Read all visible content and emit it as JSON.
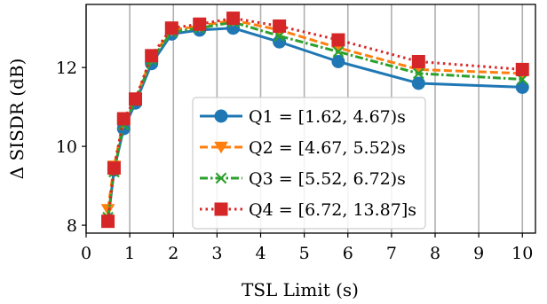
{
  "chart_data": {
    "type": "line",
    "xlabel": "TSL Limit (s)",
    "ylabel": "Δ SISDR (dB)",
    "xlim": [
      0,
      10.3
    ],
    "ylim": [
      7.8,
      13.6
    ],
    "x_ticks": [
      0,
      1,
      2,
      3,
      4,
      5,
      6,
      7,
      8,
      9,
      10
    ],
    "y_ticks": [
      8,
      10,
      12
    ],
    "grid": "vertical",
    "legend_position": "center-right",
    "series": [
      {
        "name": "Q1 = [1.62, 4.67)s",
        "color": "#1f77b4",
        "dash": "solid",
        "marker": "circle",
        "x": [
          0.5,
          0.64,
          0.86,
          1.13,
          1.5,
          1.96,
          2.6,
          3.37,
          4.43,
          5.78,
          7.62,
          10.0
        ],
        "y": [
          8.1,
          9.4,
          10.45,
          11.1,
          12.1,
          12.85,
          12.95,
          13.0,
          12.65,
          12.15,
          11.6,
          11.5
        ]
      },
      {
        "name": "Q2 = [4.67, 5.52)s",
        "color": "#ff7f0e",
        "dash": "dashed",
        "marker": "triangle-down",
        "x": [
          0.5,
          0.64,
          0.86,
          1.13,
          1.5,
          1.96,
          2.6,
          3.37,
          4.43,
          5.78,
          7.62,
          10.0
        ],
        "y": [
          8.4,
          9.5,
          10.65,
          11.2,
          12.25,
          12.95,
          13.05,
          13.2,
          12.95,
          12.5,
          11.95,
          11.85
        ]
      },
      {
        "name": "Q3 = [5.52, 6.72)s",
        "color": "#2ca02c",
        "dash": "dashdot",
        "marker": "x",
        "x": [
          0.5,
          0.64,
          0.86,
          1.13,
          1.5,
          1.96,
          2.6,
          3.37,
          4.43,
          5.78,
          7.62,
          10.0
        ],
        "y": [
          8.2,
          9.35,
          10.55,
          11.15,
          12.2,
          12.9,
          13.0,
          13.15,
          12.8,
          12.4,
          11.85,
          11.7
        ]
      },
      {
        "name": "Q4 = [6.72, 13.87]s",
        "color": "#d62728",
        "dash": "dotted",
        "marker": "square",
        "x": [
          0.5,
          0.64,
          0.86,
          1.13,
          1.5,
          1.96,
          2.6,
          3.37,
          4.43,
          5.78,
          7.62,
          10.0
        ],
        "y": [
          8.1,
          9.45,
          10.7,
          11.2,
          12.3,
          13.0,
          13.1,
          13.25,
          13.05,
          12.7,
          12.15,
          11.95
        ]
      }
    ]
  }
}
